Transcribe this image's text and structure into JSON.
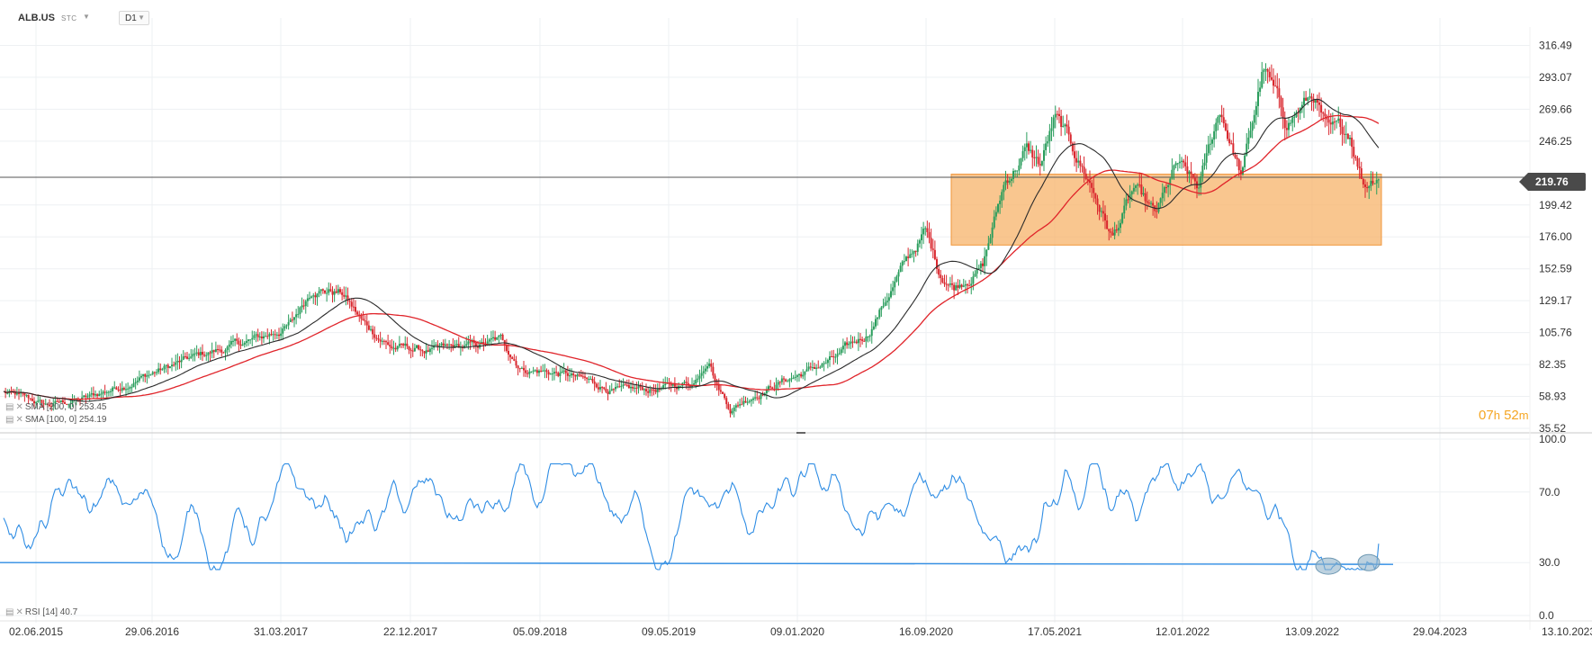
{
  "header": {
    "symbol": "ALB.US",
    "type": "STC",
    "timeframe": "D1"
  },
  "price": {
    "last": "219.76",
    "last_value": 219.76
  },
  "legend": {
    "sma1": "SMA [200, 0] 253.45",
    "sma2": "SMA [100, 0] 254.19",
    "rsi": "RSI [14] 40.7"
  },
  "timer": {
    "hours": "07",
    "hours_unit": "h",
    "minutes": "52",
    "minutes_unit": "m"
  },
  "colors": {
    "candle_up": "#2a9d5c",
    "candle_down": "#d9272e",
    "sma_long": "#e0242a",
    "sma_short": "#2b2b2b",
    "zone_fill": "#f7b36a",
    "zone_border": "#f0953a",
    "rsi_line": "#2f8de4",
    "support_line": "#2f8de4",
    "highlight": "#8fb3c9"
  },
  "chart_data": [
    {
      "type": "candlestick",
      "title": "ALB.US",
      "x_ticks": [
        "02.06.2015",
        "29.06.2016",
        "31.03.2017",
        "22.12.2017",
        "05.09.2018",
        "09.05.2019",
        "09.01.2020",
        "16.09.2020",
        "17.05.2021",
        "12.01.2022",
        "13.09.2022",
        "29.04.2023",
        "13.10.2023"
      ],
      "y_ticks": [
        "316.49",
        "293.07",
        "269.66",
        "246.25",
        "199.42",
        "176.00",
        "152.59",
        "129.17",
        "105.76",
        "82.35",
        "58.93",
        "35.52"
      ],
      "ylim": [
        35.52,
        325
      ],
      "close_path": [
        [
          0,
          62
        ],
        [
          0.03,
          52
        ],
        [
          0.06,
          58
        ],
        [
          0.1,
          75
        ],
        [
          0.14,
          90
        ],
        [
          0.18,
          102
        ],
        [
          0.2,
          112
        ],
        [
          0.215,
          140
        ],
        [
          0.235,
          135
        ],
        [
          0.25,
          112
        ],
        [
          0.27,
          95
        ],
        [
          0.3,
          92
        ],
        [
          0.33,
          96
        ],
        [
          0.345,
          100
        ],
        [
          0.36,
          80
        ],
        [
          0.39,
          75
        ],
        [
          0.41,
          68
        ],
        [
          0.43,
          62
        ],
        [
          0.46,
          65
        ],
        [
          0.48,
          70
        ],
        [
          0.49,
          90
        ],
        [
          0.495,
          70
        ],
        [
          0.505,
          50
        ],
        [
          0.52,
          60
        ],
        [
          0.54,
          70
        ],
        [
          0.56,
          78
        ],
        [
          0.58,
          88
        ],
        [
          0.6,
          105
        ],
        [
          0.62,
          145
        ],
        [
          0.64,
          180
        ],
        [
          0.65,
          150
        ],
        [
          0.66,
          140
        ],
        [
          0.68,
          155
        ],
        [
          0.695,
          215
        ],
        [
          0.71,
          240
        ],
        [
          0.72,
          228
        ],
        [
          0.73,
          262
        ],
        [
          0.74,
          245
        ],
        [
          0.755,
          215
        ],
        [
          0.77,
          175
        ],
        [
          0.785,
          210
        ],
        [
          0.8,
          190
        ],
        [
          0.815,
          228
        ],
        [
          0.83,
          210
        ],
        [
          0.845,
          270
        ],
        [
          0.86,
          220
        ],
        [
          0.875,
          300
        ],
        [
          0.89,
          260
        ],
        [
          0.91,
          280
        ],
        [
          0.92,
          250
        ],
        [
          0.935,
          252
        ],
        [
          0.945,
          215
        ],
        [
          0.955,
          225
        ]
      ],
      "zone": {
        "low": 170,
        "high": 222
      },
      "series": [
        {
          "name": "SMA [200, 0]",
          "last": 253.45
        },
        {
          "name": "SMA [100, 0]",
          "last": 254.19
        }
      ]
    },
    {
      "type": "line",
      "title": "RSI [14]",
      "y_ticks": [
        "100.0",
        "70.0",
        "30.0",
        "0.0"
      ],
      "ylim": [
        0,
        100
      ],
      "last": 40.7,
      "support_level": 29
    }
  ]
}
